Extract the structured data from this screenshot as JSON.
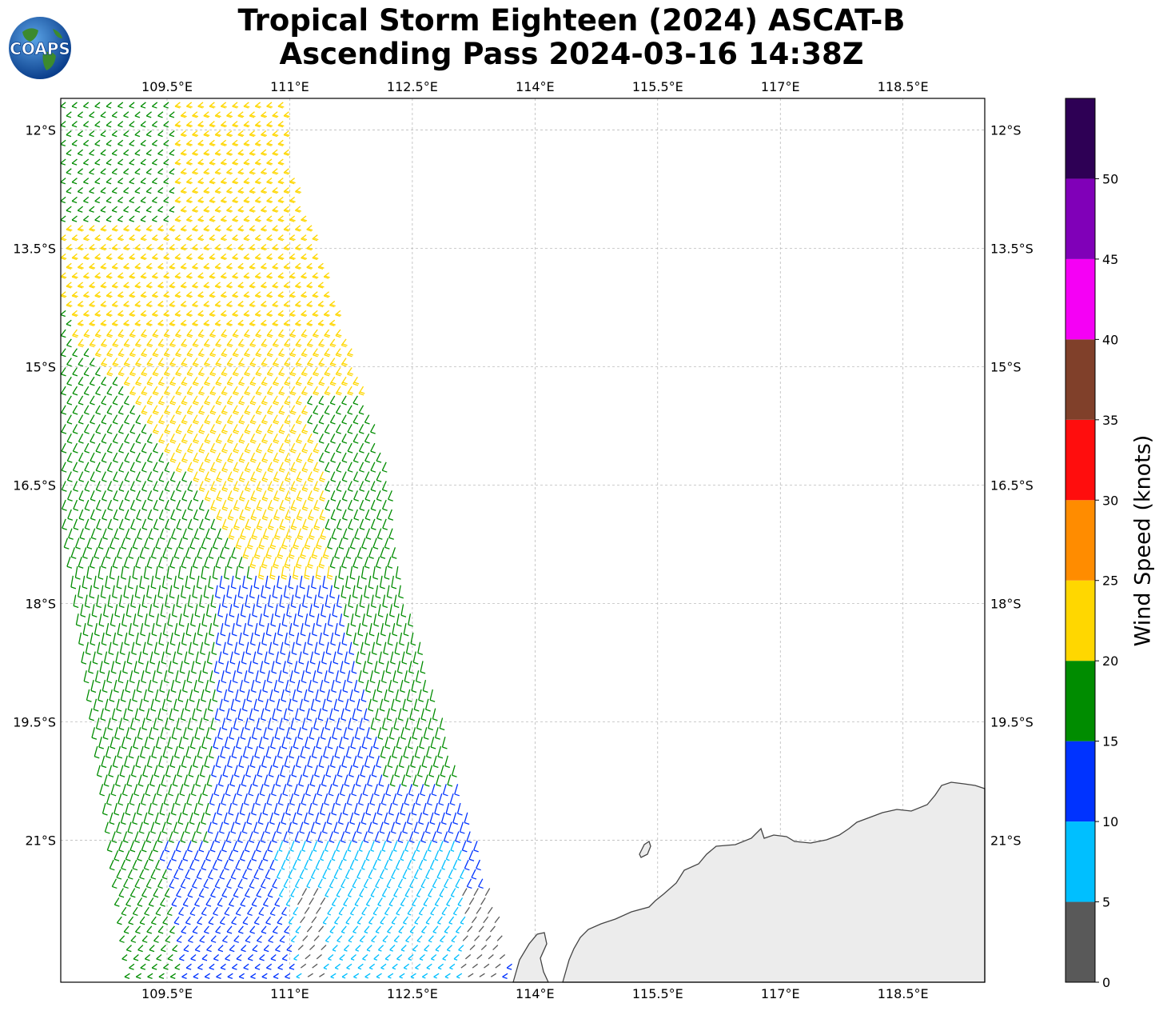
{
  "title": {
    "line1": "Tropical Storm Eighteen (2024) ASCAT-B",
    "line2": "Ascending Pass 2024-03-16 14:38Z"
  },
  "logo": {
    "icon": "coaps-globe-logo",
    "text": "COAPS"
  },
  "map": {
    "lon_range": [
      108.2,
      119.5
    ],
    "lat_range": [
      -22.8,
      -11.6
    ],
    "lon_ticks": [
      "109.5°E",
      "111°E",
      "112.5°E",
      "114°E",
      "115.5°E",
      "117°E",
      "118.5°E"
    ],
    "lat_ticks": [
      "12°S",
      "13.5°S",
      "15°S",
      "16.5°S",
      "18°S",
      "19.5°S",
      "21°S"
    ],
    "lon_tick_values": [
      109.5,
      111,
      112.5,
      114,
      115.5,
      117,
      118.5
    ],
    "lat_tick_values": [
      -12,
      -13.5,
      -15,
      -16.5,
      -18,
      -19.5,
      -21
    ],
    "grid": true,
    "land": "Western Australia coastline (north-west), shaded light grey"
  },
  "chart_data": {
    "type": "scatter",
    "description_of_marks": "wind barbs colored by speed",
    "swath_lon_edges_by_lat": [
      [
        -11.6,
        108.2,
        111.0
      ],
      [
        -16.5,
        108.2,
        112.5
      ],
      [
        -22.8,
        109.0,
        113.8
      ]
    ],
    "colorbar": {
      "label": "Wind Speed (knots)",
      "tick_labels": [
        "0",
        "5",
        "10",
        "15",
        "20",
        "25",
        "30",
        "35",
        "40",
        "45",
        "50"
      ],
      "tick_values": [
        0,
        5,
        10,
        15,
        20,
        25,
        30,
        35,
        40,
        45,
        50
      ],
      "range": [
        0,
        55
      ],
      "bins": [
        {
          "from": 0,
          "to": 5,
          "color": "#595959"
        },
        {
          "from": 5,
          "to": 10,
          "color": "#00bfff"
        },
        {
          "from": 10,
          "to": 15,
          "color": "#0033ff"
        },
        {
          "from": 15,
          "to": 20,
          "color": "#008c00"
        },
        {
          "from": 20,
          "to": 25,
          "color": "#ffd700"
        },
        {
          "from": 25,
          "to": 30,
          "color": "#ff8c00"
        },
        {
          "from": 30,
          "to": 35,
          "color": "#ff0d0d"
        },
        {
          "from": 35,
          "to": 40,
          "color": "#80402a"
        },
        {
          "from": 40,
          "to": 45,
          "color": "#f500f5"
        },
        {
          "from": 45,
          "to": 50,
          "color": "#8000b8"
        },
        {
          "from": 50,
          "to": 55,
          "color": "#2e0055"
        }
      ]
    },
    "wind_speed_regions": [
      {
        "speed_kt": 17,
        "color": "#008c00",
        "area": "north-west corner and western edge of swath"
      },
      {
        "speed_kt": 22,
        "color": "#ffd700",
        "area": "central-northern swath (13°S–17.5°S)"
      },
      {
        "speed_kt": 17,
        "color": "#008c00",
        "area": "band along 15°S–16.5°S east edge"
      },
      {
        "speed_kt": 12,
        "color": "#0033ff",
        "area": "central and south swath (16.5°S–22.8°S)"
      },
      {
        "speed_kt": 7,
        "color": "#00bfff",
        "area": "south-central near 21°S–22.8°S"
      },
      {
        "speed_kt": 3,
        "color": "#595959",
        "area": "small patches near 111°E and 113°E at 22°S"
      }
    ]
  }
}
